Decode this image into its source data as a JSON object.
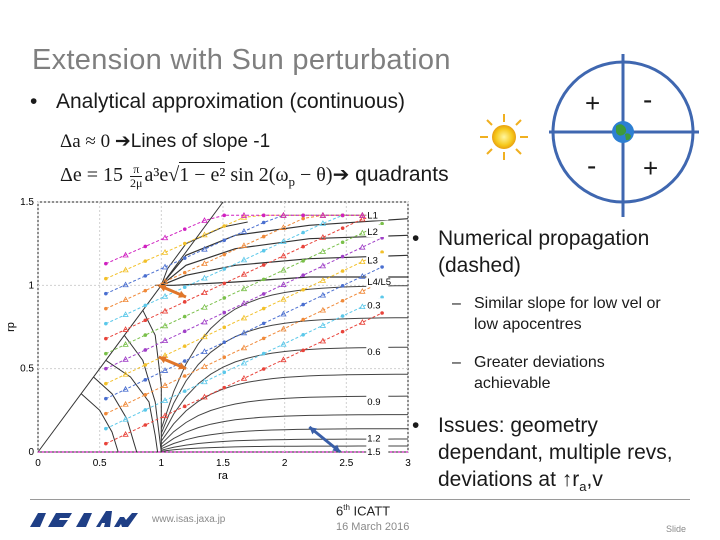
{
  "title": "Extension with Sun perturbation",
  "bullet_main": "Analytical approximation (continuous)",
  "eq1": {
    "math": "Δa ≈ 0 ",
    "tail": "Lines of slope -1"
  },
  "eq2": {
    "lead": "Δe = 15",
    "frac_num": "π",
    "frac_den": "2μ",
    "mid": "a³e",
    "sqrt_body": "1 − e²",
    "trig": " sin 2(ω",
    "sub": "p",
    "trig_end": " − θ)",
    "tail": " quadrants"
  },
  "quadrant_signs": {
    "top_left": "+",
    "top_right": "-",
    "bottom_left": "-",
    "bottom_right": "+"
  },
  "right_panel": {
    "bullet1": "Numerical propagation (dashed)",
    "sub1": "Similar slope for low vel or low apocentres",
    "sub2": "Greater deviations achievable",
    "bullet2_pre": "Issues: geometry dependant, multiple revs, deviations at ↑r",
    "bullet2_sub": "a",
    "bullet2_post": ",v"
  },
  "chart_data": {
    "type": "line",
    "xlabel": "ra",
    "ylabel": "rp",
    "xlim": [
      0,
      3
    ],
    "ylim": [
      0,
      1.5
    ],
    "x_ticks": [
      "0",
      "0.5",
      "1",
      "1.5",
      "2",
      "2.5",
      "3"
    ],
    "y_ticks": [
      "0",
      "0.5",
      "1",
      "1.5"
    ],
    "curve_labels": [
      "L1",
      "L2",
      "L3",
      "L4/L5",
      "0.3",
      "0.6",
      "0.9",
      "1.2",
      "1.5"
    ],
    "series_colors": [
      "#e8433a",
      "#5bc8ea",
      "#f08a3a",
      "#4a6fd0",
      "#f2c02a",
      "#a040c8",
      "#7ac04a",
      "#e8433a",
      "#5bc8ea",
      "#f08a3a",
      "#4a6fd0",
      "#f2c02a",
      "#d020c0"
    ],
    "arrows": [
      {
        "from": [
          0.98,
          1.0
        ],
        "to": [
          1.2,
          0.93
        ],
        "color": "#e0762a"
      },
      {
        "from": [
          0.98,
          0.57
        ],
        "to": [
          1.2,
          0.5
        ],
        "color": "#e0762a"
      },
      {
        "from": [
          2.2,
          0.15
        ],
        "to": [
          2.45,
          0.0
        ],
        "color": "#3a5fa8"
      }
    ]
  },
  "footer": {
    "url": "www.isas.jaxa.jp",
    "event_pre": "6",
    "event_sup": "th",
    "event_post": " ICATT",
    "date": "16 March 2016",
    "slide": "Slide"
  }
}
